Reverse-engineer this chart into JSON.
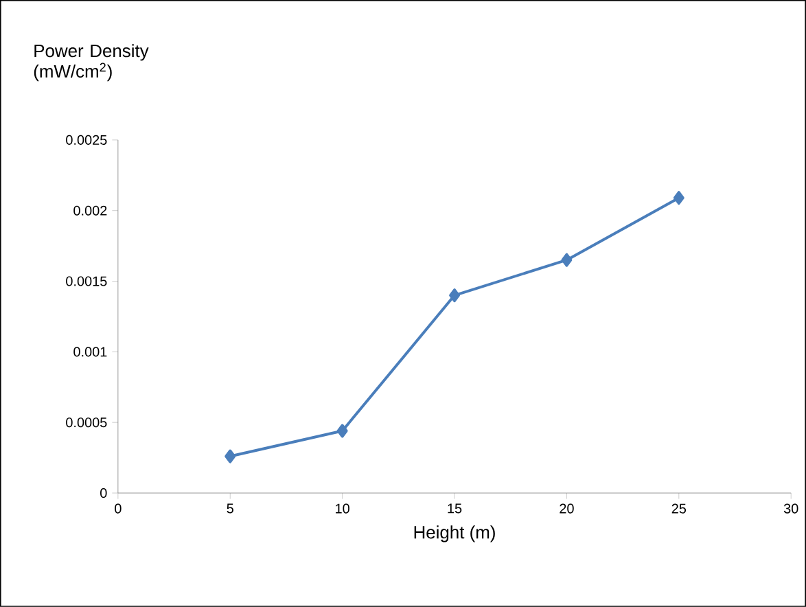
{
  "chart_data": {
    "type": "line",
    "xlabel": "Height (m)",
    "ylabel": "Power Density (mW/cm$^{2}$)",
    "x": [
      5,
      10,
      15,
      20,
      25
    ],
    "series": [
      {
        "color": "#4a7ebb",
        "values": [
          0.00026,
          0.00044,
          0.0014,
          0.00165,
          0.00209
        ]
      }
    ],
    "xlim": [
      0,
      30
    ],
    "xticks": [
      0,
      5,
      10,
      15,
      20,
      25,
      30
    ],
    "ylim": [
      0,
      0.0025
    ],
    "yticks": [
      0,
      0.0005,
      0.001,
      0.0015,
      0.002,
      0.0025
    ],
    "marker": "diamond",
    "line_style": "solid",
    "grid": false
  }
}
